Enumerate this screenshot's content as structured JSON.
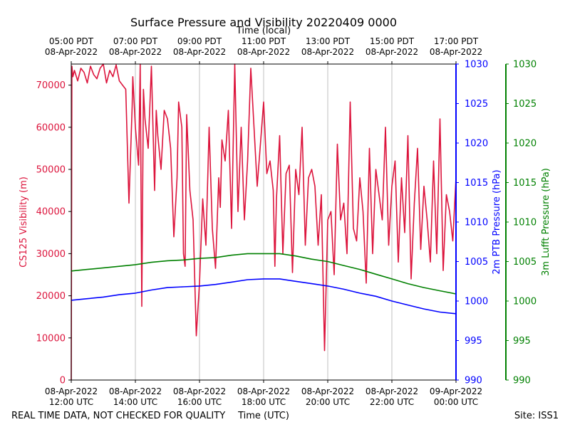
{
  "chart_data": {
    "type": "line",
    "title": "Surface Pressure and Visibility 20220409 0000",
    "top_axis": {
      "label": "Time (local)",
      "ticks": [
        {
          "time": "05:00 PDT",
          "date": "08-Apr-2022"
        },
        {
          "time": "07:00 PDT",
          "date": "08-Apr-2022"
        },
        {
          "time": "09:00 PDT",
          "date": "08-Apr-2022"
        },
        {
          "time": "11:00 PDT",
          "date": "08-Apr-2022"
        },
        {
          "time": "13:00 PDT",
          "date": "08-Apr-2022"
        },
        {
          "time": "15:00 PDT",
          "date": "08-Apr-2022"
        },
        {
          "time": "17:00 PDT",
          "date": "08-Apr-2022"
        }
      ]
    },
    "bottom_axis": {
      "label": "Time (UTC)",
      "ticks": [
        {
          "date": "08-Apr-2022",
          "time": "12:00 UTC"
        },
        {
          "date": "08-Apr-2022",
          "time": "14:00 UTC"
        },
        {
          "date": "08-Apr-2022",
          "time": "16:00 UTC"
        },
        {
          "date": "08-Apr-2022",
          "time": "18:00 UTC"
        },
        {
          "date": "08-Apr-2022",
          "time": "20:00 UTC"
        },
        {
          "date": "08-Apr-2022",
          "time": "22:00 UTC"
        },
        {
          "date": "09-Apr-2022",
          "time": "00:00 UTC"
        }
      ],
      "range": [
        "2022-04-08T12:00Z",
        "2022-04-09T00:00Z"
      ]
    },
    "left_axis": {
      "label": "CS125 Visibility (m)",
      "color": "#dc143c",
      "ylim": [
        0,
        75000
      ],
      "ticks": [
        "0",
        "10000",
        "20000",
        "30000",
        "40000",
        "50000",
        "60000",
        "70000"
      ]
    },
    "right_axis_1": {
      "label": "2m PTB Pressure (hPa)",
      "color": "#0000ff",
      "ylim": [
        990,
        1030
      ],
      "ticks": [
        "990",
        "995",
        "1000",
        "1005",
        "1010",
        "1015",
        "1020",
        "1025",
        "1030"
      ]
    },
    "right_axis_2": {
      "label": "3m Lufft Pressure (hPa)",
      "color": "#008000",
      "ylim": [
        990,
        1030
      ],
      "ticks": [
        "990",
        "995",
        "1000",
        "1005",
        "1010",
        "1015",
        "1020",
        "1025",
        "1030"
      ]
    },
    "grid": "vertical",
    "series": [
      {
        "axis": "left",
        "color": "#dc143c",
        "x_hours_utc": [
          12.0,
          12.02,
          12.05,
          12.1,
          12.2,
          12.3,
          12.4,
          12.5,
          12.6,
          12.7,
          12.8,
          12.9,
          13.0,
          13.1,
          13.2,
          13.3,
          13.4,
          13.5,
          13.6,
          13.7,
          13.8,
          13.9,
          13.92,
          14.0,
          14.1,
          14.15,
          14.2,
          14.25,
          14.3,
          14.4,
          14.5,
          14.6,
          14.65,
          14.7,
          14.8,
          14.9,
          15.0,
          15.1,
          15.2,
          15.3,
          15.35,
          15.45,
          15.5,
          15.55,
          15.6,
          15.7,
          15.8,
          15.9,
          16.0,
          16.1,
          16.2,
          16.3,
          16.4,
          16.5,
          16.6,
          16.65,
          16.7,
          16.8,
          16.9,
          17.0,
          17.1,
          17.2,
          17.3,
          17.4,
          17.5,
          17.6,
          17.7,
          17.8,
          17.9,
          18.0,
          18.1,
          18.2,
          18.3,
          18.35,
          18.4,
          18.5,
          18.6,
          18.7,
          18.8,
          18.9,
          19.0,
          19.1,
          19.2,
          19.3,
          19.4,
          19.5,
          19.6,
          19.7,
          19.8,
          19.9,
          20.0,
          20.1,
          20.2,
          20.3,
          20.4,
          20.5,
          20.6,
          20.7,
          20.8,
          20.9,
          21.0,
          21.1,
          21.2,
          21.3,
          21.4,
          21.5,
          21.6,
          21.7,
          21.8,
          21.9,
          22.0,
          22.1,
          22.2,
          22.3,
          22.4,
          22.5,
          22.6,
          22.7,
          22.8,
          22.9,
          23.0,
          23.1,
          23.2,
          23.3,
          23.4,
          23.5,
          23.6,
          23.7,
          23.8,
          23.9,
          24.0
        ],
        "values": [
          0,
          74500,
          72000,
          73500,
          71000,
          74000,
          73000,
          70500,
          74500,
          72500,
          71500,
          74000,
          75000,
          70500,
          73500,
          72000,
          74800,
          71000,
          70000,
          69000,
          42000,
          65000,
          72000,
          60000,
          51000,
          75000,
          17500,
          69000,
          62000,
          55000,
          74500,
          45000,
          64000,
          58000,
          50000,
          64000,
          62000,
          55000,
          34000,
          48000,
          66000,
          60000,
          30000,
          27000,
          63000,
          45000,
          38000,
          10500,
          23000,
          43000,
          32000,
          60000,
          36000,
          26500,
          48000,
          41000,
          57000,
          52000,
          64000,
          36000,
          75000,
          40000,
          60000,
          38000,
          52000,
          74000,
          60000,
          46000,
          56000,
          66000,
          49000,
          52000,
          45000,
          27000,
          43000,
          58000,
          30000,
          49000,
          51000,
          25500,
          50000,
          44000,
          60000,
          32000,
          48000,
          50000,
          46000,
          32000,
          44000,
          7000,
          38000,
          40000,
          25000,
          56000,
          38000,
          42000,
          30000,
          66000,
          36000,
          33000,
          48000,
          40000,
          23000,
          55000,
          30000,
          50000,
          44000,
          38000,
          60000,
          32000,
          46000,
          52000,
          28000,
          48000,
          35000,
          58000,
          24000,
          42000,
          55000,
          31000,
          46000,
          38000,
          28000,
          52000,
          30000,
          62000,
          26000,
          44000,
          40000,
          33000,
          48000,
          38000,
          32000,
          42000,
          30000,
          45000
        ],
        "note": "dense high-frequency trace, values approximate"
      },
      {
        "axis": "right_1",
        "color": "#0000ff",
        "x_hours_utc": [
          12.0,
          12.5,
          13.0,
          13.5,
          14.0,
          14.5,
          15.0,
          15.5,
          16.0,
          16.5,
          17.0,
          17.5,
          18.0,
          18.5,
          19.0,
          19.5,
          20.0,
          20.5,
          21.0,
          21.5,
          22.0,
          22.5,
          23.0,
          23.5,
          24.0
        ],
        "values": [
          1000.1,
          1000.3,
          1000.5,
          1000.8,
          1001.0,
          1001.4,
          1001.7,
          1001.8,
          1001.9,
          1002.1,
          1002.4,
          1002.7,
          1002.8,
          1002.8,
          1002.5,
          1002.2,
          1001.9,
          1001.5,
          1001.0,
          1000.6,
          1000.0,
          999.5,
          999.0,
          998.6,
          998.4
        ]
      },
      {
        "axis": "right_2",
        "color": "#008000",
        "x_hours_utc": [
          12.0,
          12.5,
          13.0,
          13.5,
          14.0,
          14.5,
          15.0,
          15.5,
          16.0,
          16.5,
          17.0,
          17.5,
          18.0,
          18.5,
          19.0,
          19.5,
          20.0,
          20.5,
          21.0,
          21.5,
          22.0,
          22.5,
          23.0,
          23.5,
          24.0
        ],
        "values": [
          1003.8,
          1004.0,
          1004.2,
          1004.4,
          1004.6,
          1004.9,
          1005.1,
          1005.2,
          1005.4,
          1005.5,
          1005.8,
          1006.0,
          1006.0,
          1006.0,
          1005.7,
          1005.3,
          1005.0,
          1004.5,
          1004.0,
          1003.4,
          1002.8,
          1002.2,
          1001.7,
          1001.3,
          1000.9
        ]
      }
    ]
  },
  "footer": {
    "left_note": "REAL TIME DATA, NOT CHECKED FOR QUALITY",
    "site": "Site: ISS1"
  }
}
